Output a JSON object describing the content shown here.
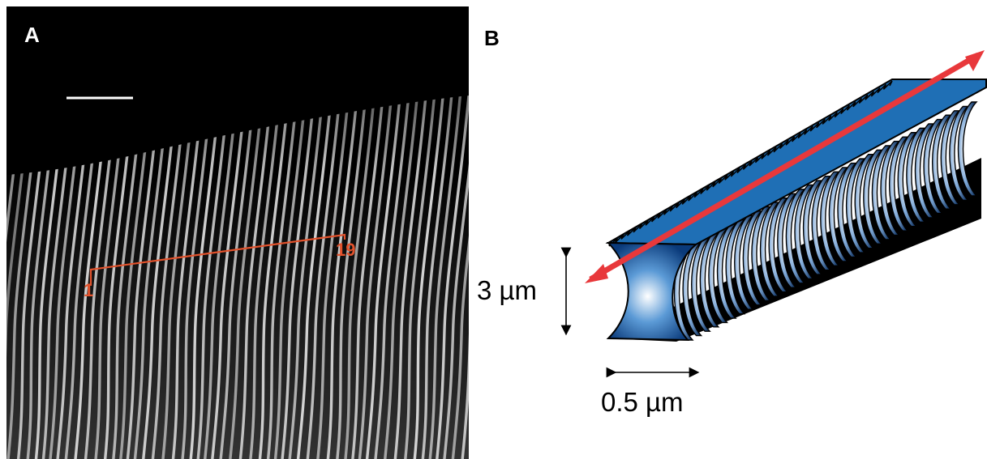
{
  "panels": {
    "a": {
      "label": "A",
      "markers": {
        "start": "1",
        "end": "19"
      }
    },
    "b": {
      "label": "B",
      "dimensions": {
        "height": "3 µm",
        "width": "0.5 µm"
      }
    }
  },
  "colors": {
    "measure_line": "#e2522c",
    "arrow": "#e8383b",
    "top_face": "#1f6fb5",
    "background_micrograph": "#000000"
  }
}
